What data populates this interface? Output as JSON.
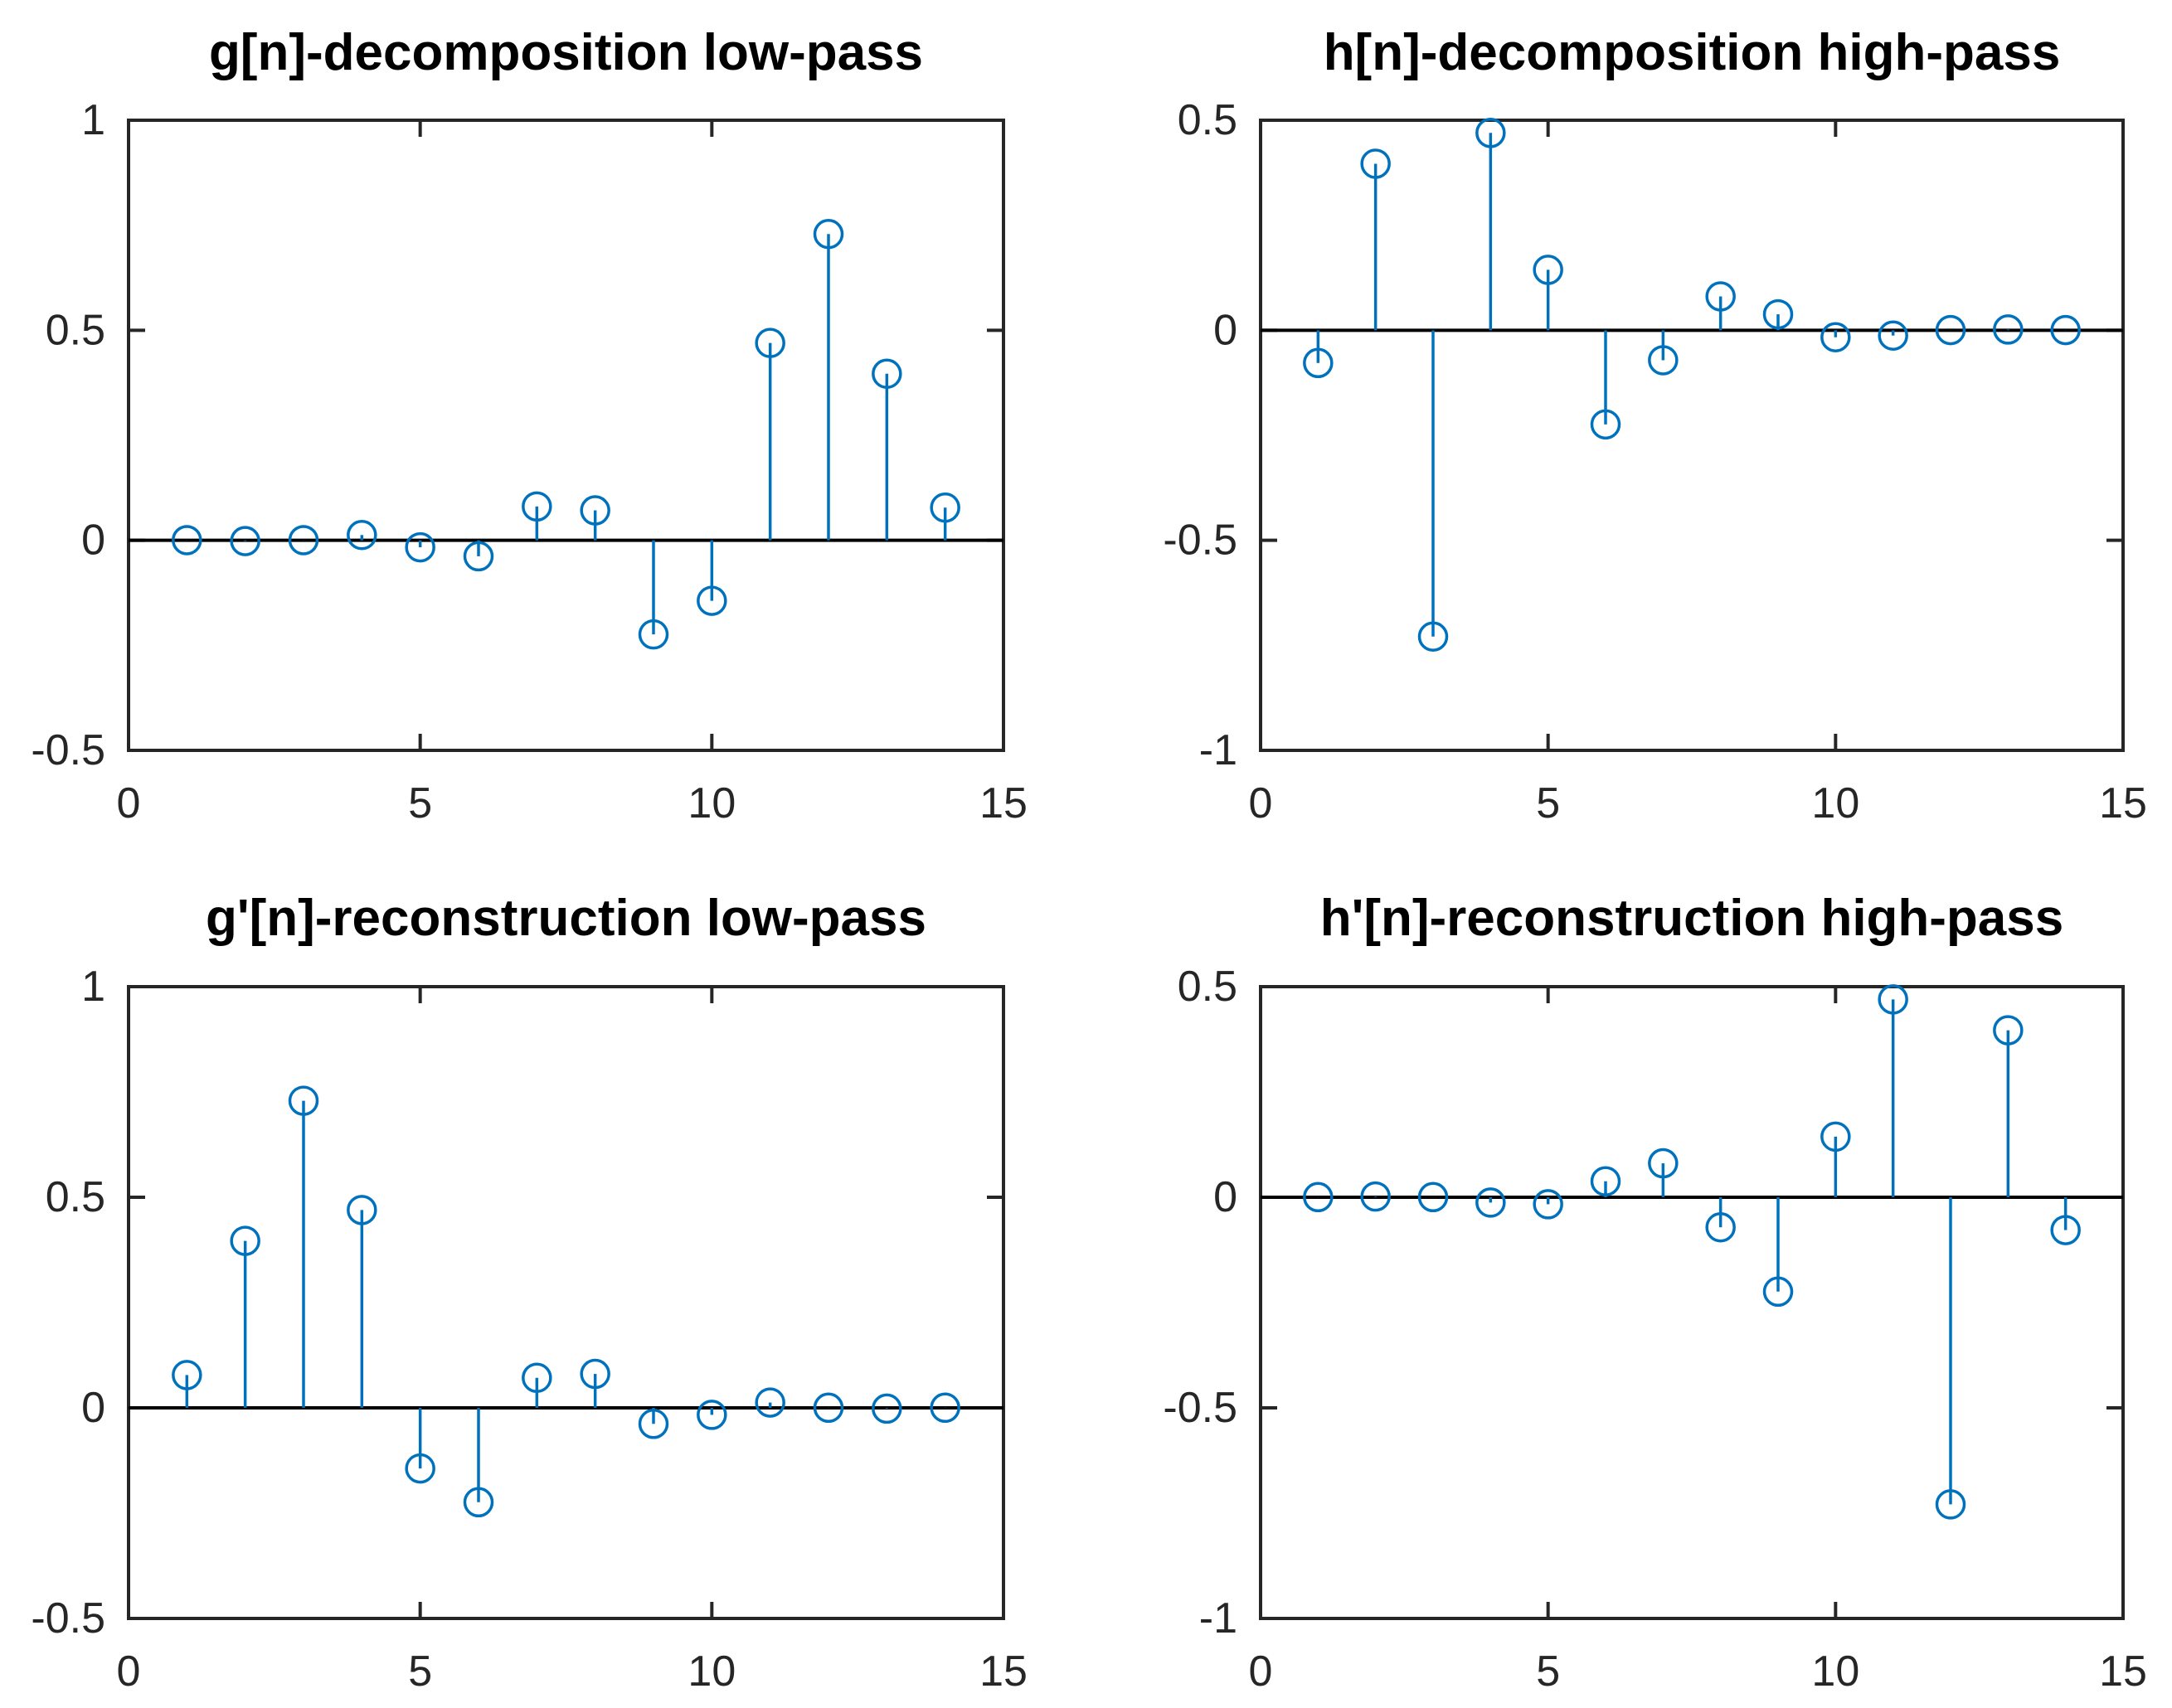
{
  "figure": {
    "background": "#ffffff",
    "accent_color": "#0072BD",
    "axis_color": "#262626",
    "baseline_color": "#000000",
    "title_color": "#000000"
  },
  "chart_data": [
    {
      "type": "stem",
      "title": "g[n]-decomposition low-pass",
      "x": [
        1,
        2,
        3,
        4,
        5,
        6,
        7,
        8,
        9,
        10,
        11,
        12,
        13,
        14
      ],
      "values": [
        0.0004,
        -0.0018,
        0.0004,
        0.0126,
        -0.0166,
        -0.038,
        0.0806,
        0.0713,
        -0.224,
        -0.1439,
        0.4698,
        0.7291,
        0.3965,
        0.0779
      ],
      "xlim": [
        0,
        15
      ],
      "ylim": [
        -0.5,
        1
      ],
      "xticks": [
        0,
        5,
        10,
        15
      ],
      "xtick_labels": [
        "0",
        "5",
        "10",
        "15"
      ],
      "yticks": [
        -0.5,
        0,
        0.5,
        1
      ],
      "ytick_labels": [
        "-0.5",
        "0",
        "0.5",
        "1"
      ],
      "marker": "open-circle",
      "grid": false,
      "legend": null
    },
    {
      "type": "stem",
      "title": "h[n]-decomposition high-pass",
      "x": [
        1,
        2,
        3,
        4,
        5,
        6,
        7,
        8,
        9,
        10,
        11,
        12,
        13,
        14
      ],
      "values": [
        -0.0779,
        0.3965,
        -0.7291,
        0.4698,
        0.1439,
        -0.224,
        -0.0713,
        0.0806,
        0.038,
        -0.0166,
        -0.0126,
        0.0004,
        0.0018,
        0.0004
      ],
      "xlim": [
        0,
        15
      ],
      "ylim": [
        -1,
        0.5
      ],
      "xticks": [
        0,
        5,
        10,
        15
      ],
      "xtick_labels": [
        "0",
        "5",
        "10",
        "15"
      ],
      "yticks": [
        -1,
        -0.5,
        0,
        0.5
      ],
      "ytick_labels": [
        "-1",
        "-0.5",
        "0",
        "0.5"
      ],
      "marker": "open-circle",
      "grid": false,
      "legend": null
    },
    {
      "type": "stem",
      "title": "g'[n]-reconstruction low-pass",
      "x": [
        1,
        2,
        3,
        4,
        5,
        6,
        7,
        8,
        9,
        10,
        11,
        12,
        13,
        14
      ],
      "values": [
        0.0779,
        0.3965,
        0.7291,
        0.4698,
        -0.1439,
        -0.224,
        0.0713,
        0.0806,
        -0.038,
        -0.0166,
        0.0126,
        0.0004,
        -0.0018,
        0.0004
      ],
      "xlim": [
        0,
        15
      ],
      "ylim": [
        -0.5,
        1
      ],
      "xticks": [
        0,
        5,
        10,
        15
      ],
      "xtick_labels": [
        "0",
        "5",
        "10",
        "15"
      ],
      "yticks": [
        -0.5,
        0,
        0.5,
        1
      ],
      "ytick_labels": [
        "-0.5",
        "0",
        "0.5",
        "1"
      ],
      "marker": "open-circle",
      "grid": false,
      "legend": null
    },
    {
      "type": "stem",
      "title": "h'[n]-reconstruction high-pass",
      "x": [
        1,
        2,
        3,
        4,
        5,
        6,
        7,
        8,
        9,
        10,
        11,
        12,
        13,
        14
      ],
      "values": [
        0.0004,
        0.0018,
        0.0004,
        -0.0126,
        -0.0166,
        0.038,
        0.0806,
        -0.0713,
        -0.224,
        0.1439,
        0.4698,
        -0.7291,
        0.3965,
        -0.0779
      ],
      "xlim": [
        0,
        15
      ],
      "ylim": [
        -1,
        0.5
      ],
      "xticks": [
        0,
        5,
        10,
        15
      ],
      "xtick_labels": [
        "0",
        "5",
        "10",
        "15"
      ],
      "yticks": [
        -1,
        -0.5,
        0,
        0.5
      ],
      "ytick_labels": [
        "-1",
        "-0.5",
        "0",
        "0.5"
      ],
      "marker": "open-circle",
      "grid": false,
      "legend": null
    }
  ]
}
